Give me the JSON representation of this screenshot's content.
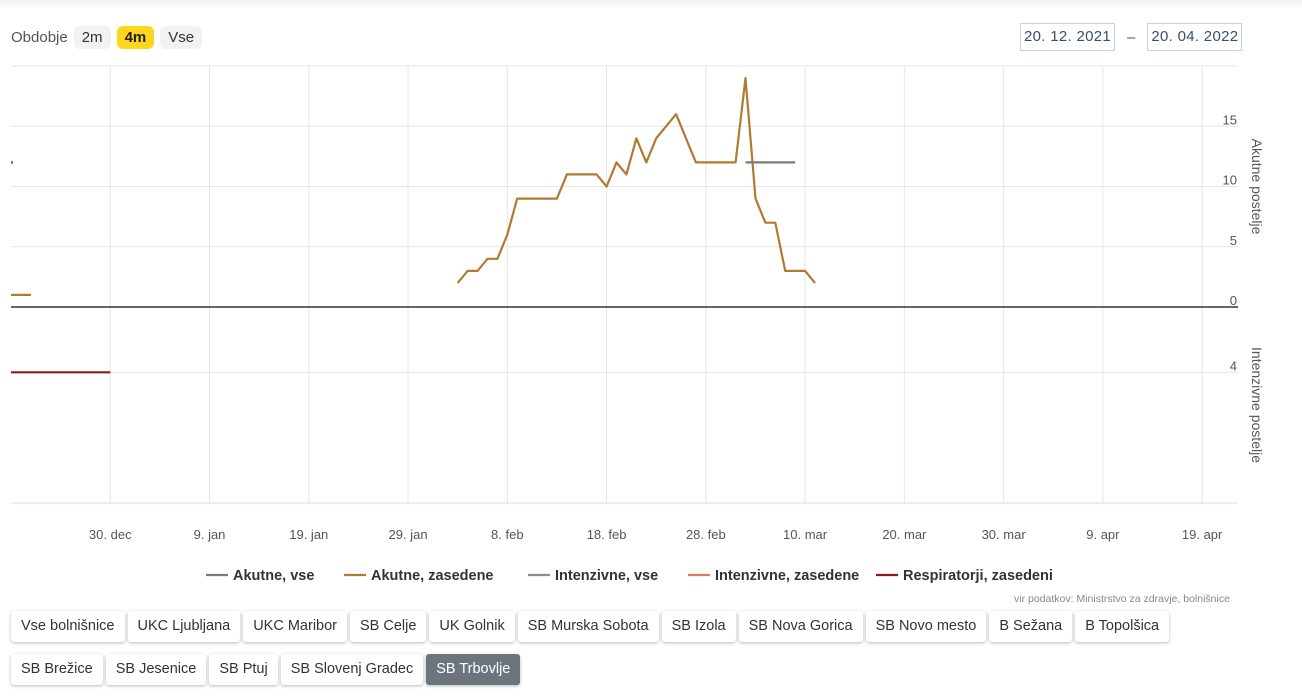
{
  "period": {
    "label": "Obdobje",
    "options": [
      {
        "label": "2m",
        "active": false
      },
      {
        "label": "4m",
        "active": true
      },
      {
        "label": "Vse",
        "active": false
      }
    ]
  },
  "date_range": {
    "from": "20. 12. 2021",
    "separator": "–",
    "to": "20. 04. 2022"
  },
  "source": "vir podatkov: Ministrstvo za zdravje, bolnišnice",
  "hospitals": [
    {
      "label": "Vse bolnišnice",
      "active": false
    },
    {
      "label": "UKC Ljubljana",
      "active": false
    },
    {
      "label": "UKC Maribor",
      "active": false
    },
    {
      "label": "SB Celje",
      "active": false
    },
    {
      "label": "UK Golnik",
      "active": false
    },
    {
      "label": "SB Murska Sobota",
      "active": false
    },
    {
      "label": "SB Izola",
      "active": false
    },
    {
      "label": "SB Nova Gorica",
      "active": false
    },
    {
      "label": "SB Novo mesto",
      "active": false
    },
    {
      "label": "B Sežana",
      "active": false
    },
    {
      "label": "B Topolšica",
      "active": false
    },
    {
      "label": "SB Brežice",
      "active": false
    },
    {
      "label": "SB Jesenice",
      "active": false
    },
    {
      "label": "SB Ptuj",
      "active": false
    },
    {
      "label": "SB Slovenj Gradec",
      "active": false
    },
    {
      "label": "SB Trbovlje",
      "active": true
    }
  ],
  "chart_data": {
    "type": "line",
    "x_tick_labels": [
      "30. dec",
      "9. jan",
      "19. jan",
      "29. jan",
      "8. feb",
      "18. feb",
      "28. feb",
      "10. mar",
      "20. mar",
      "30. mar",
      "9. apr",
      "19. apr"
    ],
    "x_range": [
      "2021-12-20",
      "2022-04-21"
    ],
    "grid": true,
    "legend_position": "bottom",
    "panels": [
      {
        "ylabel": "Akutne postelje",
        "ylim": [
          0,
          20
        ],
        "y_ticks": [
          0,
          5,
          10,
          15
        ],
        "series": [
          {
            "name": "Akutne, vse",
            "color": "#7a7a7a",
            "points": [
              [
                "2021-12-20",
                12
              ]
            ]
          },
          {
            "name": "Akutne, zasedene",
            "color": "#b07a30",
            "points": [
              [
                "2021-12-20",
                1
              ],
              [
                "2021-12-22",
                1
              ]
            ]
          },
          {
            "name": "Akutne, zasedene",
            "color": "#b07a30",
            "points": [
              [
                "2022-02-03",
                2
              ],
              [
                "2022-02-04",
                3
              ],
              [
                "2022-02-05",
                3
              ],
              [
                "2022-02-06",
                4
              ],
              [
                "2022-02-07",
                4
              ],
              [
                "2022-02-08",
                6
              ],
              [
                "2022-02-09",
                9
              ],
              [
                "2022-02-10",
                9
              ],
              [
                "2022-02-11",
                9
              ],
              [
                "2022-02-12",
                9
              ],
              [
                "2022-02-13",
                9
              ],
              [
                "2022-02-14",
                11
              ],
              [
                "2022-02-15",
                11
              ],
              [
                "2022-02-16",
                11
              ],
              [
                "2022-02-17",
                11
              ],
              [
                "2022-02-18",
                10
              ],
              [
                "2022-02-19",
                12
              ],
              [
                "2022-02-20",
                11
              ],
              [
                "2022-02-21",
                14
              ],
              [
                "2022-02-22",
                12
              ],
              [
                "2022-02-23",
                14
              ],
              [
                "2022-02-24",
                15
              ],
              [
                "2022-02-25",
                16
              ],
              [
                "2022-02-26",
                14
              ],
              [
                "2022-02-27",
                12
              ],
              [
                "2022-02-28",
                12
              ],
              [
                "2022-03-01",
                12
              ],
              [
                "2022-03-02",
                12
              ],
              [
                "2022-03-03",
                12
              ],
              [
                "2022-03-04",
                19
              ],
              [
                "2022-03-05",
                9
              ],
              [
                "2022-03-06",
                7
              ],
              [
                "2022-03-07",
                7
              ],
              [
                "2022-03-08",
                3
              ],
              [
                "2022-03-09",
                3
              ],
              [
                "2022-03-10",
                3
              ],
              [
                "2022-03-11",
                2
              ]
            ]
          },
          {
            "name": "Akutne, vse",
            "color": "#7a7a7a",
            "points": [
              [
                "2022-03-04",
                12
              ],
              [
                "2022-03-09",
                12
              ]
            ]
          }
        ]
      },
      {
        "ylabel": "Intenzivne postelje",
        "ylim": [
          0,
          6
        ],
        "y_ticks": [
          4
        ],
        "series": [
          {
            "name": "Respiratorji, zasedeni",
            "color": "#8e1b1b",
            "points": [
              [
                "2021-12-20",
                4
              ],
              [
                "2021-12-30",
                4
              ]
            ]
          }
        ]
      }
    ],
    "legend": [
      {
        "name": "Akutne, vse",
        "color": "#7a7a7a"
      },
      {
        "name": "Akutne, zasedene",
        "color": "#b07a30"
      },
      {
        "name": "Intenzivne, vse",
        "color": "#8c8c8c"
      },
      {
        "name": "Intenzivne, zasedene",
        "color": "#e07a5f"
      },
      {
        "name": "Respiratorji, zasedeni",
        "color": "#8e1b1b"
      }
    ]
  }
}
